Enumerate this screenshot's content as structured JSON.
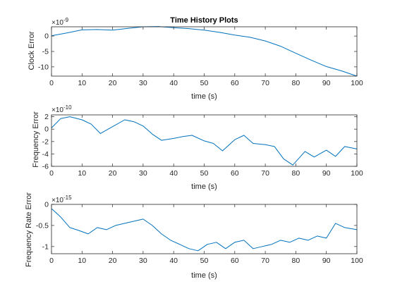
{
  "figure": {
    "title": "Time History Plots"
  },
  "chart_data": [
    {
      "type": "line",
      "title": "Time History Plots",
      "xlabel": "time (s)",
      "ylabel": "Clock Error",
      "y_exponent_label": "×10-9",
      "y_exponent_base": "×10",
      "y_exponent_power": "-9",
      "xlim": [
        0,
        100
      ],
      "ylim": [
        -13,
        3
      ],
      "xticks": [
        0,
        10,
        20,
        30,
        40,
        50,
        60,
        70,
        80,
        90,
        100
      ],
      "yticks": [
        -10,
        -5,
        0
      ],
      "grid": false,
      "color": "#0072BD",
      "x": [
        0,
        5,
        10,
        15,
        20,
        25,
        30,
        35,
        40,
        45,
        50,
        55,
        60,
        65,
        70,
        75,
        80,
        85,
        90,
        95,
        100
      ],
      "y": [
        0.1,
        1.0,
        2.0,
        2.1,
        1.9,
        2.5,
        3.0,
        3.1,
        2.7,
        2.4,
        1.9,
        1.2,
        0.3,
        -0.4,
        -1.6,
        -3.3,
        -5.6,
        -7.8,
        -9.9,
        -11.3,
        -13.0
      ]
    },
    {
      "type": "line",
      "xlabel": "time (s)",
      "ylabel": "Frequency Error",
      "y_exponent_label": "×10-10",
      "y_exponent_base": "×10",
      "y_exponent_power": "-10",
      "xlim": [
        0,
        100
      ],
      "ylim": [
        -6,
        2.3
      ],
      "xticks": [
        0,
        10,
        20,
        30,
        40,
        50,
        60,
        70,
        80,
        90,
        100
      ],
      "yticks": [
        -6,
        -4,
        -2,
        0,
        2
      ],
      "grid": false,
      "color": "#0072BD",
      "x": [
        0,
        3,
        6,
        10,
        13,
        16,
        20,
        24,
        27,
        30,
        33,
        36,
        40,
        43,
        46,
        50,
        53,
        56,
        60,
        63,
        66,
        70,
        73,
        76,
        79,
        83,
        86,
        90,
        93,
        96,
        100
      ],
      "y": [
        0.2,
        1.7,
        2.0,
        1.5,
        0.8,
        -0.7,
        0.4,
        1.5,
        1.2,
        0.5,
        -0.8,
        -1.8,
        -1.5,
        -1.2,
        -1.0,
        -1.9,
        -2.3,
        -3.5,
        -1.7,
        -1.0,
        -2.3,
        -2.5,
        -2.8,
        -4.8,
        -5.8,
        -3.6,
        -4.5,
        -3.4,
        -4.4,
        -2.8,
        -3.2
      ]
    },
    {
      "type": "line",
      "xlabel": "time (s)",
      "ylabel": "Frequency Rate Error",
      "y_exponent_label": "×10-15",
      "y_exponent_base": "×10",
      "y_exponent_power": "-15",
      "xlim": [
        0,
        100
      ],
      "ylim": [
        -1.17,
        0
      ],
      "xticks": [
        0,
        10,
        20,
        30,
        40,
        50,
        60,
        70,
        80,
        90,
        100
      ],
      "yticks": [
        -1,
        -0.5,
        0
      ],
      "grid": false,
      "color": "#0072BD",
      "x": [
        0,
        3,
        6,
        9,
        12,
        15,
        18,
        21,
        24,
        27,
        30,
        33,
        36,
        39,
        42,
        45,
        48,
        51,
        54,
        57,
        60,
        63,
        66,
        69,
        72,
        75,
        78,
        81,
        84,
        87,
        90,
        93,
        96,
        100
      ],
      "y": [
        -0.1,
        -0.3,
        -0.55,
        -0.62,
        -0.7,
        -0.55,
        -0.6,
        -0.5,
        -0.45,
        -0.4,
        -0.35,
        -0.5,
        -0.7,
        -0.85,
        -0.95,
        -1.05,
        -1.1,
        -0.95,
        -0.9,
        -1.05,
        -0.9,
        -0.85,
        -1.05,
        -1.0,
        -0.95,
        -0.85,
        -0.9,
        -0.8,
        -0.85,
        -0.75,
        -0.8,
        -0.45,
        -0.55,
        -0.6
      ]
    }
  ]
}
